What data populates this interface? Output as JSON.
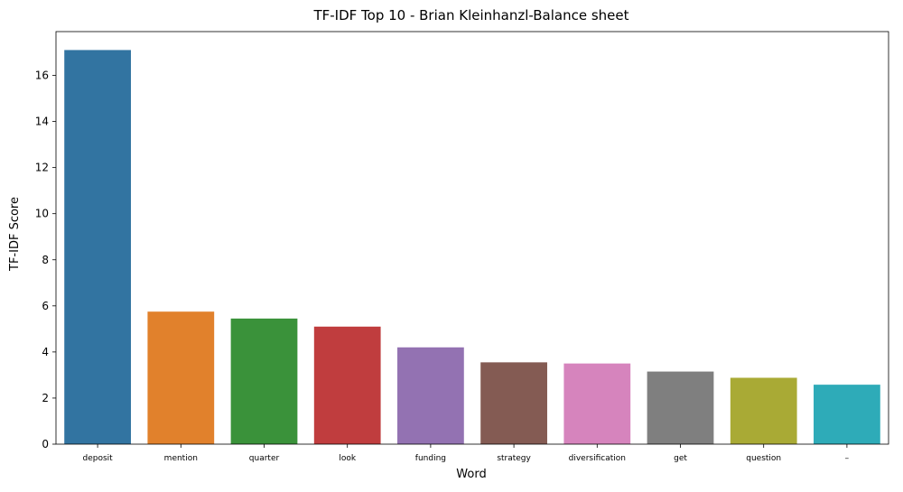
{
  "chart_data": {
    "type": "bar",
    "title": "TF-IDF Top 10 - Brian Kleinhanzl-Balance sheet",
    "xlabel": "Word",
    "ylabel": "TF-IDF Score",
    "categories": [
      "deposit",
      "mention",
      "quarter",
      "look",
      "funding",
      "strategy",
      "diversification",
      "get",
      "question",
      "–"
    ],
    "values": [
      17.1,
      5.75,
      5.45,
      5.1,
      4.2,
      3.55,
      3.5,
      3.15,
      2.88,
      2.58
    ],
    "ylim": [
      0,
      17.9
    ],
    "yticks": [
      0,
      2,
      4,
      6,
      8,
      10,
      12,
      14,
      16
    ],
    "grid": false,
    "legend": "none",
    "colors": [
      "#3274a1",
      "#e1812c",
      "#3a923a",
      "#c03d3e",
      "#9372b2",
      "#845b53",
      "#d684bd",
      "#7f7f7f",
      "#a9aa35",
      "#2eabb8"
    ]
  }
}
